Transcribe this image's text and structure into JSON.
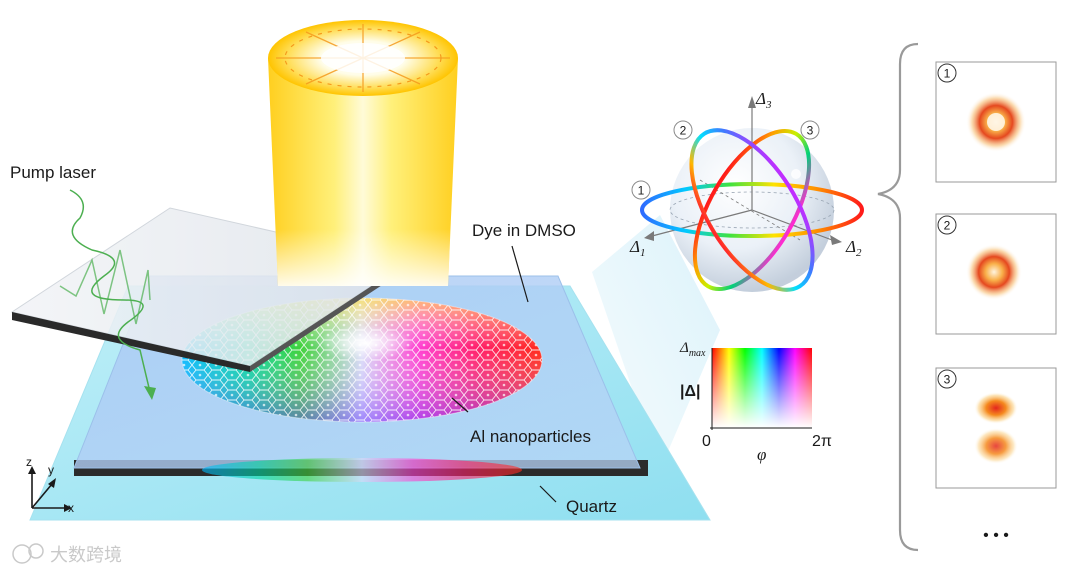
{
  "labels": {
    "pump_laser": "Pump laser",
    "dye": "Dye in DMSO",
    "nanoparticles": "Al nanoparticles",
    "quartz": "Quartz"
  },
  "axes3d": {
    "z": "z",
    "y": "y",
    "x": "x"
  },
  "sphere": {
    "delta1": "Δ",
    "delta1_sub": "1",
    "delta2": "Δ",
    "delta2_sub": "2",
    "delta3": "Δ",
    "delta3_sub": "3",
    "markers": [
      "1",
      "2",
      "3"
    ]
  },
  "colormap": {
    "top_label": "Δ",
    "top_sub": "max",
    "ylabel": "|Δ|",
    "x_min": "0",
    "x_max": "2π",
    "x_label": "φ"
  },
  "panels": [
    {
      "number": "1"
    },
    {
      "number": "2"
    },
    {
      "number": "3"
    }
  ],
  "ellipsis": "• • •",
  "watermark": "大数跨境",
  "colors": {
    "glass": "#9fe6f2",
    "beam": "#ffd23a",
    "pump": "#4caf50",
    "ring_red": "#ff2a2a",
    "frame": "#9a9a9a"
  }
}
